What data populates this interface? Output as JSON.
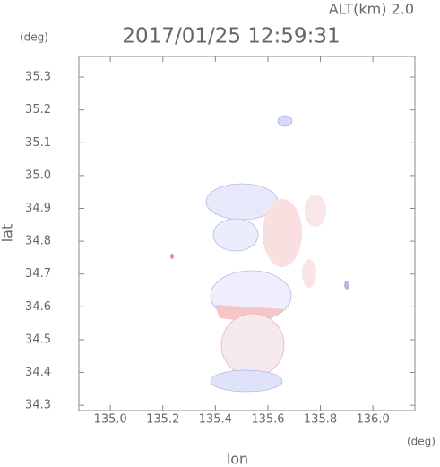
{
  "chart_data": {
    "type": "map",
    "subtitle": "ALT(km) 2.0",
    "title": "2017/01/25 12:59:31",
    "y_unit": "(deg)",
    "x_unit": "(deg)",
    "xlabel": "lon",
    "ylabel": "lat",
    "xlim": [
      134.88,
      136.16
    ],
    "ylim": [
      34.284,
      35.363
    ],
    "xticks": [
      {
        "value": 135,
        "label": "135.0"
      },
      135.2,
      135.4,
      135.6,
      135.8,
      {
        "value": 136,
        "label": "136.0"
      }
    ],
    "yticks": [
      34.3,
      34.4,
      34.5,
      34.6,
      34.7,
      34.8,
      34.9,
      {
        "value": 35,
        "label": "35.0"
      },
      35.1,
      35.2,
      35.3
    ]
  }
}
